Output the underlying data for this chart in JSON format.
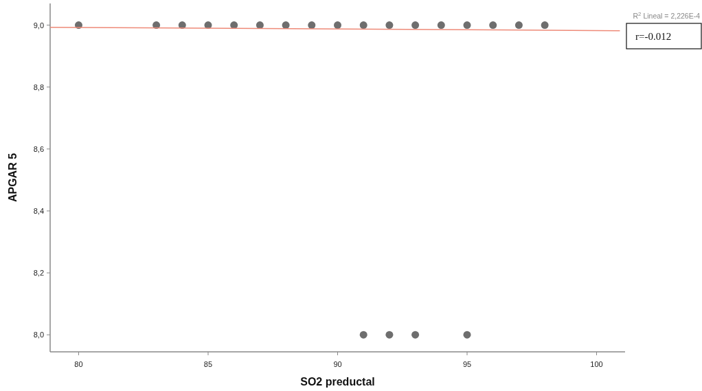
{
  "chart_data": {
    "type": "scatter",
    "xlabel": "SO2 preductal",
    "ylabel": "APGAR 5",
    "xlim": [
      78.9,
      101.1
    ],
    "xticks": [
      80,
      85,
      90,
      95,
      100
    ],
    "ylim": [
      7.945,
      9.07
    ],
    "yticks": [
      {
        "value": 8.0,
        "label": "8,0"
      },
      {
        "value": 8.2,
        "label": "8,2"
      },
      {
        "value": 8.4,
        "label": "8,4"
      },
      {
        "value": 8.6,
        "label": "8,6"
      },
      {
        "value": 8.8,
        "label": "8,8"
      },
      {
        "value": 9.0,
        "label": "9,0"
      }
    ],
    "grid": false,
    "series": [
      {
        "marker": "circle",
        "color": "#6e6e6e",
        "x": [
          80,
          83,
          84,
          85,
          86,
          87,
          88,
          89,
          90,
          91,
          92,
          93,
          94,
          95,
          96,
          97,
          98,
          91,
          92,
          93,
          95
        ],
        "values": [
          9,
          9,
          9,
          9,
          9,
          9,
          9,
          9,
          9,
          9,
          9,
          9,
          9,
          9,
          9,
          9,
          9,
          8,
          8,
          8,
          8
        ]
      },
      {
        "type": "line",
        "color": "#ee8a78",
        "x": [
          78.9,
          100.9
        ],
        "values": [
          8.993,
          8.982
        ]
      }
    ],
    "annotations": [
      "R$^{2}$ Lineal = 2,226E-4",
      "r=-0.012"
    ]
  }
}
